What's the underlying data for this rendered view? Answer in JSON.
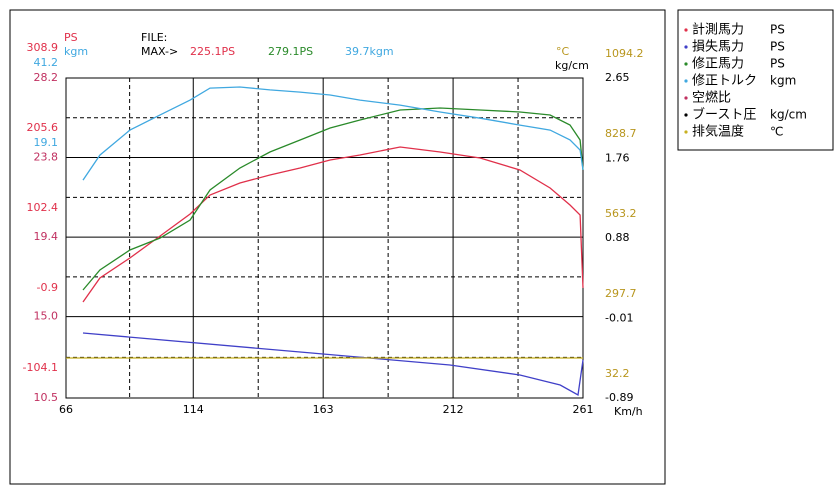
{
  "chart_data": {
    "type": "line",
    "file_label": "FILE:",
    "max_prefix": "MAX->",
    "max_labels": [
      {
        "text": "225.1PS",
        "color": "#e0304a"
      },
      {
        "text": "279.1PS",
        "color": "#2a8a2a"
      },
      {
        "text": "39.7kgm",
        "color": "#40a8e0"
      }
    ],
    "x_label": "Km/h",
    "xlim": [
      66,
      261
    ],
    "xticks": [
      66,
      114,
      163,
      212,
      261
    ],
    "axes": [
      {
        "name": "PS",
        "color": "#e0304a",
        "side": "left",
        "lim": [
          -104.1,
          308.9
        ],
        "ticks": [
          308.9,
          205.6,
          102.4,
          -0.9,
          -104.1
        ]
      },
      {
        "name": "kgm",
        "color": "#40a8e0",
        "side": "left",
        "lim": [
          -47.2,
          41.2
        ],
        "ticks": [
          41.2,
          19.1
        ]
      },
      {
        "color": "#c03060",
        "side": "left",
        "lim": [
          10.5,
          28.2
        ],
        "ticks": [
          28.2,
          23.8,
          19.4,
          {
            "value": 15,
            "label": "15.0"
          },
          10.5
        ]
      },
      {
        "name": "°C",
        "color": "#b8961e",
        "side": "right",
        "lim": [
          32.2,
          1094.2
        ],
        "ticks": [
          1094.2,
          828.7,
          563.2,
          297.7,
          32.2
        ]
      },
      {
        "name": "kg/cm",
        "color": "#000000",
        "side": "right",
        "lim": [
          -0.89,
          2.65
        ],
        "ticks": [
          2.65,
          1.76,
          0.88,
          -0.01,
          -0.89
        ]
      }
    ],
    "series": [
      {
        "name": "計測馬力",
        "unit": "PS",
        "color": "#e0304a",
        "axis": 0,
        "x": [
          72.4,
          78.8,
          90.1,
          101.5,
          112.8,
          120.3,
          131.6,
          142.9,
          154.3,
          165.6,
          176.9,
          192.0,
          207.1,
          222.2,
          237.2,
          248.6,
          256.1,
          259.9,
          261
        ],
        "values": [
          19.8,
          50.8,
          76.6,
          105.0,
          133.4,
          157.9,
          173.4,
          183.7,
          192.8,
          203.1,
          209.5,
          219.8,
          213.4,
          205.6,
          190.2,
          166.9,
          145.0,
          132.1,
          37.9
        ]
      },
      {
        "name": "損失馬力",
        "unit": "PS",
        "color": "#4040c8",
        "axis": 0,
        "x": [
          72.4,
          154.3,
          210.8,
          237.2,
          252.4,
          259.1,
          261
        ],
        "values": [
          -20.2,
          -44.7,
          -61.5,
          -74.4,
          -87.3,
          -100.2,
          -55.0
        ]
      },
      {
        "name": "修正馬力",
        "unit": "PS",
        "color": "#2a8a2a",
        "axis": 0,
        "x": [
          72.4,
          78.8,
          90.1,
          101.5,
          112.8,
          120.3,
          131.6,
          142.9,
          154.3,
          165.6,
          176.9,
          192.0,
          207.1,
          222.2,
          237.2,
          248.6,
          256.1,
          259.9,
          261
        ],
        "values": [
          35.3,
          61.1,
          86.9,
          102.4,
          125.6,
          164.3,
          192.8,
          213.4,
          228.9,
          244.4,
          254.7,
          267.6,
          270.2,
          267.6,
          265.0,
          261.1,
          248.3,
          228.9,
          190.2
        ]
      },
      {
        "name": "修正トルク",
        "unit": "kgm",
        "color": "#40a8e0",
        "axis": 1,
        "x": [
          72.4,
          78.8,
          90.1,
          101.5,
          112.8,
          120.3,
          131.6,
          142.9,
          154.3,
          165.6,
          176.9,
          192.0,
          207.1,
          222.2,
          237.2,
          248.6,
          256.1,
          259.9,
          261
        ],
        "values": [
          13.0,
          19.9,
          26.8,
          31.0,
          35.1,
          38.4,
          38.7,
          37.9,
          37.3,
          36.5,
          35.1,
          33.7,
          31.8,
          30.1,
          28.2,
          26.8,
          24.1,
          21.3,
          15.8
        ]
      },
      {
        "name": "空燃比",
        "color": "#c03060",
        "axis": 2,
        "x": [],
        "values": []
      },
      {
        "name": "ブースト圧",
        "unit": "kg/cm",
        "color": "#000000",
        "axis": 4,
        "x": [],
        "values": []
      },
      {
        "name": "排気温度",
        "unit": "℃",
        "color": "#c8b020",
        "axis": 3,
        "x": [
          66,
          261
        ],
        "values": [
          165,
          165
        ]
      }
    ]
  }
}
